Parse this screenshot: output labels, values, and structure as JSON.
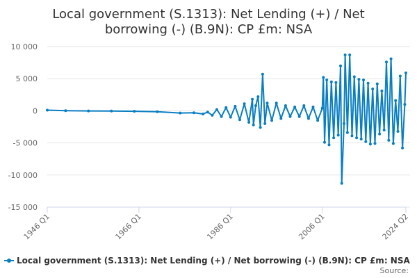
{
  "chart_data": {
    "type": "line",
    "title_line1": "Local government (S.1313): Net Lending (+) / Net",
    "title_line2": "borrowing (-) (B.9N): CP £m: NSA",
    "ylim": [
      -15000,
      10000
    ],
    "yticks": [
      10000,
      5000,
      0,
      -5000,
      -10000,
      -15000
    ],
    "ytick_labels": [
      "10 000",
      "5 000",
      "0",
      "-5 000",
      "-10 000",
      "-15 000"
    ],
    "xlim": [
      "1946 Q1",
      "2024 Q2"
    ],
    "xtick_labels": [
      "1946 Q1",
      "1966 Q1",
      "1986 Q1",
      "2006 Q1",
      "2024 Q2"
    ],
    "grid": true,
    "legend_position": "bottom",
    "series": [
      {
        "name": "Local government (S.1313): Net Lending (+) / Net borrowing (-) (B.9N): CP £m: NSA",
        "color": "#0a7ec2",
        "points": [
          [
            "1946 Q1",
            100
          ],
          [
            "1950 Q1",
            20
          ],
          [
            "1955 Q1",
            -20
          ],
          [
            "1960 Q1",
            -40
          ],
          [
            "1965 Q1",
            -80
          ],
          [
            "1970 Q1",
            -150
          ],
          [
            "1975 Q1",
            -350
          ],
          [
            "1978 Q1",
            -300
          ],
          [
            "1980 Q1",
            -500
          ],
          [
            "1981 Q1",
            -200
          ],
          [
            "1982 Q1",
            -700
          ],
          [
            "1983 Q1",
            200
          ],
          [
            "1984 Q1",
            -900
          ],
          [
            "1985 Q1",
            500
          ],
          [
            "1986 Q1",
            -1000
          ],
          [
            "1987 Q1",
            700
          ],
          [
            "1988 Q1",
            -1400
          ],
          [
            "1989 Q1",
            1100
          ],
          [
            "1990 Q1",
            -1800
          ],
          [
            "1990 Q4",
            1800
          ],
          [
            "1991 Q1",
            -2200
          ],
          [
            "1991 Q3",
            800
          ],
          [
            "1992 Q1",
            2200
          ],
          [
            "1992 Q3",
            -2600
          ],
          [
            "1993 Q1",
            5700
          ],
          [
            "1993 Q3",
            -2000
          ],
          [
            "1994 Q1",
            1200
          ],
          [
            "1995 Q1",
            -1500
          ],
          [
            "1996 Q1",
            1200
          ],
          [
            "1997 Q1",
            -1200
          ],
          [
            "1998 Q1",
            800
          ],
          [
            "1999 Q1",
            -900
          ],
          [
            "2000 Q1",
            600
          ],
          [
            "2001 Q1",
            -900
          ],
          [
            "2002 Q1",
            800
          ],
          [
            "2003 Q1",
            -1200
          ],
          [
            "2004 Q1",
            600
          ],
          [
            "2005 Q1",
            -1500
          ],
          [
            "2006 Q1",
            400
          ],
          [
            "2006 Q2",
            5200
          ],
          [
            "2006 Q3",
            -4900
          ],
          [
            "2007 Q1",
            4800
          ],
          [
            "2007 Q3",
            -5300
          ],
          [
            "2008 Q1",
            4500
          ],
          [
            "2008 Q3",
            -4200
          ],
          [
            "2009 Q1",
            4400
          ],
          [
            "2009 Q3",
            -3800
          ],
          [
            "2010 Q1",
            7000
          ],
          [
            "2010 Q2",
            -11300
          ],
          [
            "2010 Q4",
            -2000
          ],
          [
            "2011 Q1",
            8700
          ],
          [
            "2011 Q3",
            -3400
          ],
          [
            "2012 Q1",
            8700
          ],
          [
            "2012 Q3",
            -3900
          ],
          [
            "2013 Q1",
            5300
          ],
          [
            "2013 Q3",
            -4200
          ],
          [
            "2014 Q1",
            4900
          ],
          [
            "2014 Q3",
            -4400
          ],
          [
            "2015 Q1",
            4800
          ],
          [
            "2015 Q3",
            -4800
          ],
          [
            "2016 Q1",
            4300
          ],
          [
            "2016 Q3",
            -5200
          ],
          [
            "2017 Q1",
            3400
          ],
          [
            "2017 Q3",
            -5100
          ],
          [
            "2018 Q1",
            4200
          ],
          [
            "2018 Q3",
            -3600
          ],
          [
            "2019 Q1",
            3100
          ],
          [
            "2019 Q3",
            -3000
          ],
          [
            "2020 Q1",
            7600
          ],
          [
            "2020 Q3",
            -4600
          ],
          [
            "2021 Q1",
            8100
          ],
          [
            "2021 Q3",
            -5100
          ],
          [
            "2022 Q1",
            1600
          ],
          [
            "2022 Q3",
            -3200
          ],
          [
            "2023 Q1",
            5400
          ],
          [
            "2023 Q3",
            -5800
          ],
          [
            "2024 Q1",
            1000
          ],
          [
            "2024 Q2",
            5900
          ]
        ]
      }
    ],
    "source_label": "Source:"
  }
}
